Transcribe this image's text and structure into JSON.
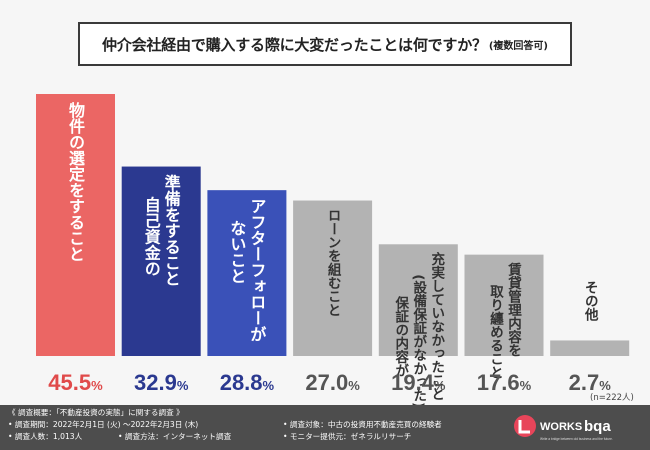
{
  "title": {
    "main": "仲介会社経由で購入する際に大変だったことは何ですか？",
    "sub": "(複数回答可)"
  },
  "chart_data": {
    "type": "bar",
    "title": "仲介会社経由で購入する際に大変だったことは何ですか？(複数回答可)",
    "categories": [
      [
        "物件の選定をすること"
      ],
      [
        "準備をすること",
        "自己資金の"
      ],
      [
        "アフターフォローが",
        "ないこと"
      ],
      [
        "ローンを組むこと"
      ],
      [
        "充実していなかったこと",
        "(設備保証がなかった)",
        "保証の内容が"
      ],
      [
        "賃貸管理内容を",
        "取り纏めること"
      ],
      [
        "その他"
      ]
    ],
    "category_labels": [
      "物件の選定をすること",
      "自己資金の準備をすること",
      "アフターフォローがないこと",
      "ローンを組むこと",
      "保証の内容が充実していなかったこと(設備保証がなかった)",
      "賃貸管理内容を取り纏めること",
      "その他"
    ],
    "values": [
      45.5,
      32.9,
      28.8,
      27.0,
      19.4,
      17.6,
      2.7
    ],
    "value_labels": [
      "45.5",
      "32.9",
      "28.8",
      "27.0",
      "19.4",
      "17.6",
      "2.7"
    ],
    "unit": "%",
    "bar_colors": [
      "#eb6664",
      "#2b3990",
      "#3a51b8",
      "#b3b3b3",
      "#b3b3b3",
      "#b3b3b3",
      "#b3b3b3"
    ],
    "value_colors": [
      "#e04a4a",
      "#2b3990",
      "#2b3990",
      "#555555",
      "#555555",
      "#555555",
      "#555555"
    ],
    "ylim": [
      0,
      45.5
    ],
    "sample_note": "(n=222人)"
  },
  "footer": {
    "lines": [
      "《 調査概要：「不動産投資の実態」に関する調査 》",
      "• 調査期間：2022年2月1日 (火) ～2022年2月3日 (木)",
      "• 調査対象：中古の投資用不動産売買の経験者",
      "• 調査人数：1,013人",
      "• 調査方法：インターネット調査",
      "• モニター提供元：ゼネラルリサーチ"
    ],
    "logo_text": "WORKS",
    "logo_sub": "bqa",
    "logo_tagline": "Write a bridge between old business and the future."
  }
}
